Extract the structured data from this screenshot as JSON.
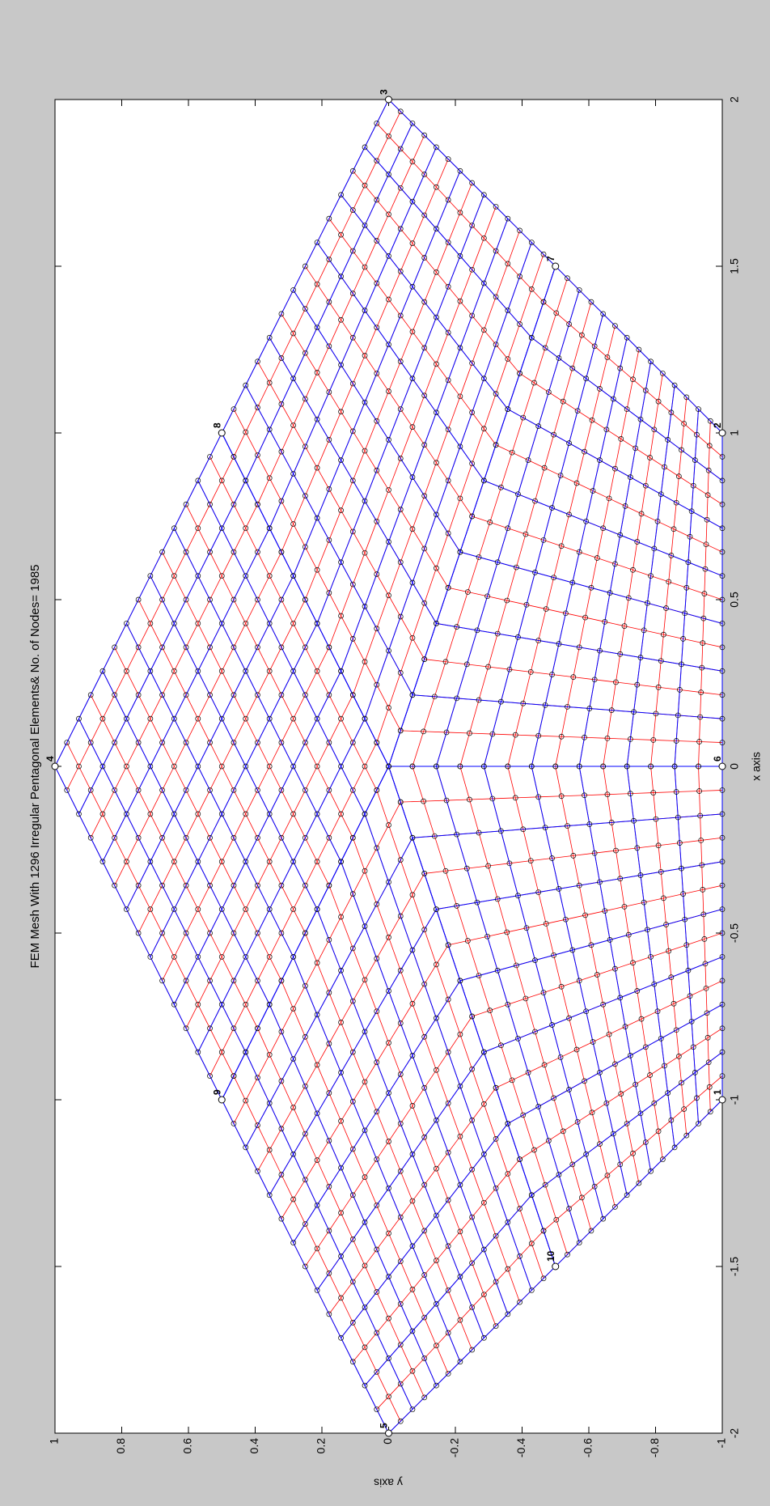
{
  "chart_data": {
    "type": "mesh",
    "title": "FEM Mesh With 1296  Irregular Pentagonal Elements& No. of Nodes=  1985",
    "xlabel": "x axis",
    "ylabel": "y axis",
    "xlim": [
      -2,
      2
    ],
    "ylim": [
      -1,
      1
    ],
    "xticks": [
      -2,
      -1.5,
      -1,
      -0.5,
      0,
      0.5,
      1,
      1.5,
      2
    ],
    "yticks": [
      -1,
      -0.8,
      -0.6,
      -0.4,
      -0.2,
      0,
      0.2,
      0.4,
      0.6,
      0.8,
      1
    ],
    "coarse_color": "#0000ff",
    "fine_color": "#ff0000",
    "nodes": [
      {
        "label": "1",
        "x": -1,
        "y": -1
      },
      {
        "label": "2",
        "x": 1,
        "y": -1
      },
      {
        "label": "3",
        "x": 2,
        "y": 0
      },
      {
        "label": "4",
        "x": 0,
        "y": 1
      },
      {
        "label": "5",
        "x": -2,
        "y": 0
      },
      {
        "label": "6",
        "x": 0,
        "y": -1
      },
      {
        "label": "7",
        "x": 1.5,
        "y": -0.5
      },
      {
        "label": "8",
        "x": 1,
        "y": 0.5
      },
      {
        "label": "9",
        "x": -1,
        "y": 0.5
      },
      {
        "label": "10",
        "x": -1.5,
        "y": -0.5
      }
    ]
  }
}
